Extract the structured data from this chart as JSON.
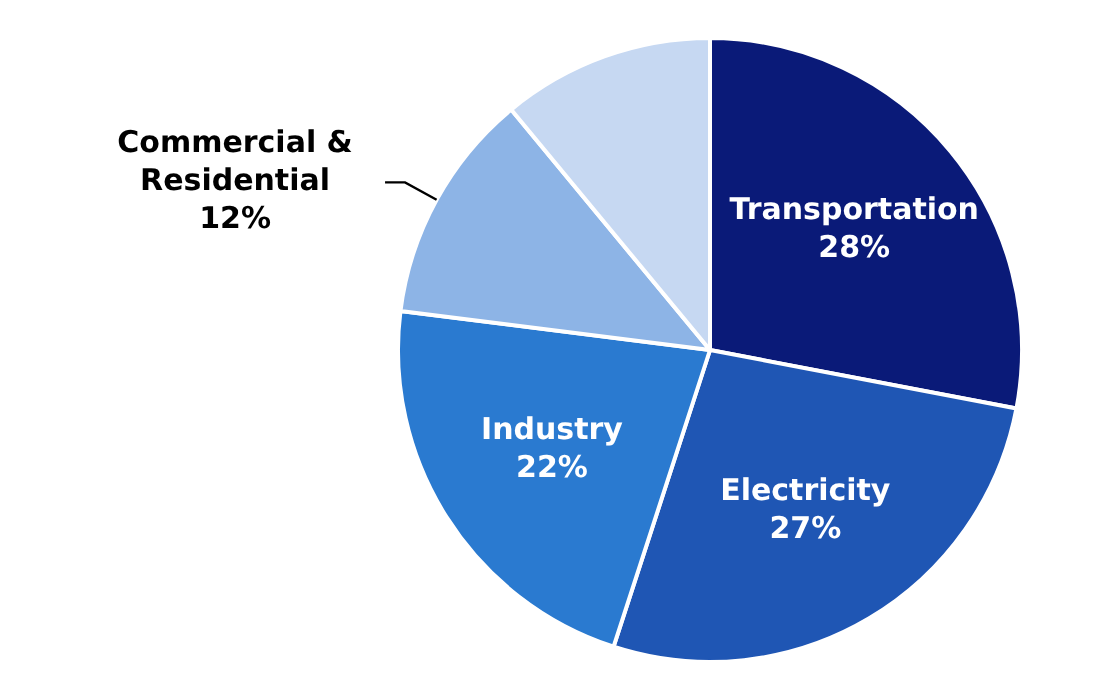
{
  "chart_data": {
    "type": "pie",
    "categories": [
      "Transportation",
      "Electricity",
      "Industry",
      "Commercial & Residential",
      null
    ],
    "values": [
      28,
      27,
      22,
      12,
      11
    ],
    "value_labels": [
      "28%",
      "27%",
      "22%",
      "12%",
      null
    ],
    "colors": [
      "#0a1a78",
      "#1f56b4",
      "#2a7ad0",
      "#8db4e6",
      "#c6d8f2"
    ],
    "legend": false
  }
}
